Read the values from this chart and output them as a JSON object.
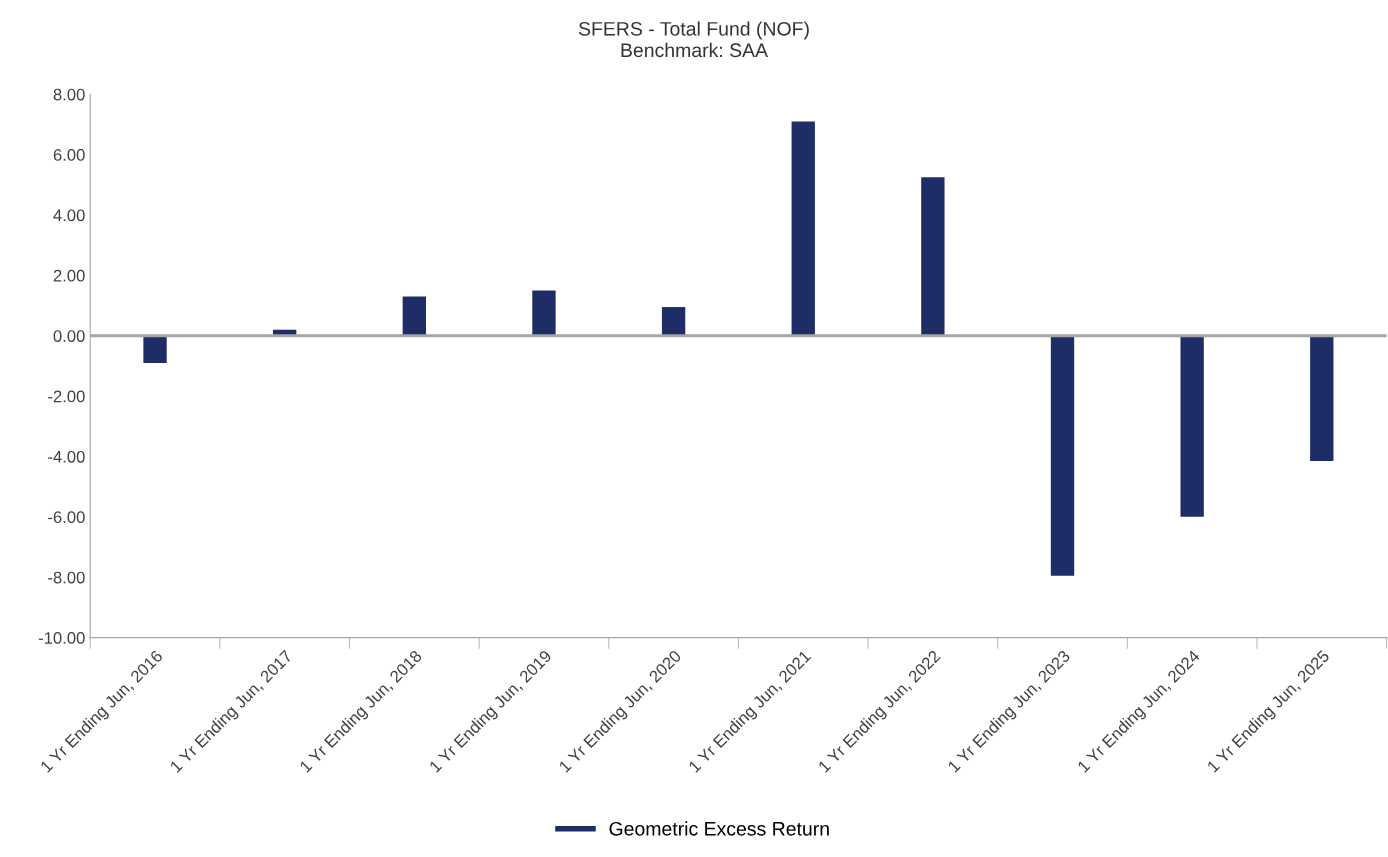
{
  "chart_data": {
    "type": "bar",
    "title": "SFERS - Total Fund (NOF)",
    "subtitle": "Benchmark: SAA",
    "categories": [
      "1 Yr Ending Jun, 2016",
      "1 Yr Ending Jun, 2017",
      "1 Yr Ending Jun, 2018",
      "1 Yr Ending Jun, 2019",
      "1 Yr Ending Jun, 2020",
      "1 Yr Ending Jun, 2021",
      "1 Yr Ending Jun, 2022",
      "1 Yr Ending Jun, 2023",
      "1 Yr Ending Jun, 2024",
      "1 Yr Ending Jun, 2025"
    ],
    "series": [
      {
        "name": "Geometric Excess Return",
        "color": "#1f2d66",
        "values": [
          -0.9,
          0.2,
          1.3,
          1.5,
          0.95,
          7.1,
          5.25,
          -7.95,
          -6.0,
          -4.15
        ]
      }
    ],
    "ylim": [
      -10,
      8
    ],
    "yticks": [
      {
        "value": -10,
        "label": "-10.00"
      },
      {
        "value": -8,
        "label": "-8.00"
      },
      {
        "value": -6,
        "label": "-6.00"
      },
      {
        "value": -4,
        "label": "-4.00"
      },
      {
        "value": -2,
        "label": "-2.00"
      },
      {
        "value": 0,
        "label": "0.00"
      },
      {
        "value": 2,
        "label": "2.00"
      },
      {
        "value": 4,
        "label": "4.00"
      },
      {
        "value": 6,
        "label": "6.00"
      },
      {
        "value": 8,
        "label": "8.00"
      }
    ],
    "ref_lines": [
      {
        "axis": "y",
        "value": 0,
        "color": "#a6a6a6"
      }
    ],
    "grid": false,
    "legend": "bottom"
  }
}
